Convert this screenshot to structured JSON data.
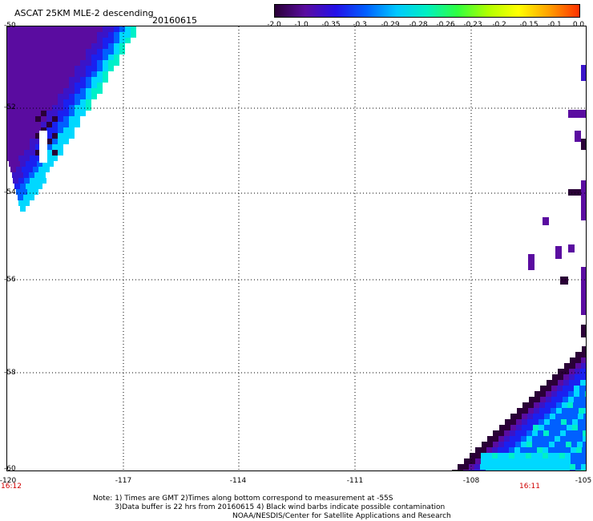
{
  "header": {
    "title": "ASCAT 25KM MLE-2 descending",
    "date": "20160615"
  },
  "colorbar": {
    "labels": [
      "-2.0",
      "-1.0",
      "-0.35",
      "-0.3",
      "-0.29",
      "-0.28",
      "-0.26",
      "-0.23",
      "-0.2",
      "-0.15",
      "-0.1",
      "0.0"
    ],
    "colors": [
      "#2a0037",
      "#5a0ca0",
      "#2410e8",
      "#0060ff",
      "#00c8ff",
      "#00f0c0",
      "#30ff40",
      "#b0ff00",
      "#ffff00",
      "#ffa000",
      "#ff3000"
    ]
  },
  "axes": {
    "lat_labels": [
      "-50",
      "-52",
      "-54",
      "-56",
      "-58",
      "-60"
    ],
    "lon_labels": [
      "-120",
      "-117",
      "-114",
      "-111",
      "-108",
      "-105"
    ],
    "time_labels": [
      "16:12",
      "16:11"
    ]
  },
  "notes": {
    "line1": "Note: 1) Times are GMT 2)Times along bottom correspond to measurement at -55S",
    "line2": "3)Data buffer is 22 hrs from 20160615 4) Black wind barbs indicate possible contamination",
    "line3": "NOAA/NESDIS/Center for Satellite Applications and Research"
  },
  "colors": {
    "background": "#ffffff",
    "grid": "#000000",
    "time": "#d00000"
  }
}
